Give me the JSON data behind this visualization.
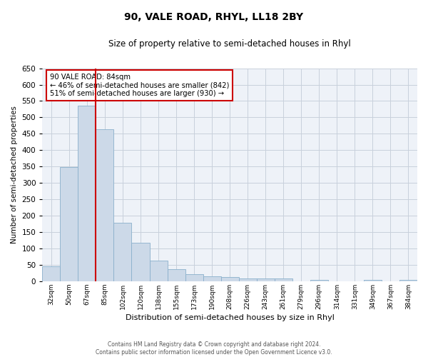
{
  "title": "90, VALE ROAD, RHYL, LL18 2BY",
  "subtitle": "Size of property relative to semi-detached houses in Rhyl",
  "xlabel": "Distribution of semi-detached houses by size in Rhyl",
  "ylabel": "Number of semi-detached properties",
  "bar_labels": [
    "32sqm",
    "50sqm",
    "67sqm",
    "85sqm",
    "102sqm",
    "120sqm",
    "138sqm",
    "155sqm",
    "173sqm",
    "190sqm",
    "208sqm",
    "226sqm",
    "243sqm",
    "261sqm",
    "279sqm",
    "296sqm",
    "314sqm",
    "331sqm",
    "349sqm",
    "367sqm",
    "384sqm"
  ],
  "bar_values": [
    46,
    349,
    535,
    463,
    178,
    118,
    62,
    36,
    22,
    15,
    12,
    8,
    8,
    8,
    0,
    4,
    0,
    0,
    4,
    0,
    4
  ],
  "bar_color": "#ccd9e8",
  "bar_edge_color": "#8ab0cc",
  "ylim": [
    0,
    650
  ],
  "yticks": [
    0,
    50,
    100,
    150,
    200,
    250,
    300,
    350,
    400,
    450,
    500,
    550,
    600,
    650
  ],
  "property_line_color": "#cc0000",
  "annotation_title": "90 VALE ROAD: 84sqm",
  "annotation_line1": "← 46% of semi-detached houses are smaller (842)",
  "annotation_line2": "51% of semi-detached houses are larger (930) →",
  "annotation_box_color": "#ffffff",
  "annotation_box_edge_color": "#cc0000",
  "footer_line1": "Contains HM Land Registry data © Crown copyright and database right 2024.",
  "footer_line2": "Contains public sector information licensed under the Open Government Licence v3.0.",
  "figure_facecolor": "#ffffff",
  "axes_facecolor": "#eef2f8",
  "grid_color": "#c8d0dc"
}
